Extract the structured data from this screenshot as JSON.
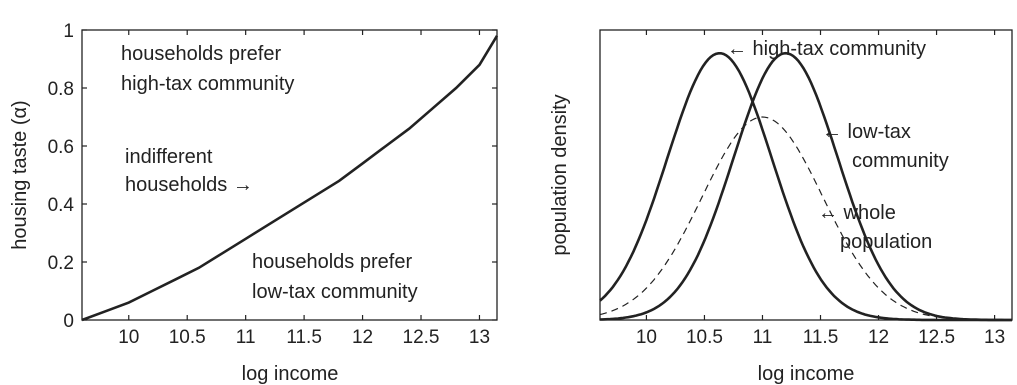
{
  "chart_data": [
    {
      "type": "line",
      "title": "",
      "xlabel": "log income",
      "ylabel": "housing taste (α)",
      "xlim": [
        9.6,
        13.15
      ],
      "ylim": [
        0,
        1
      ],
      "xticks": [
        "10",
        "10.5",
        "11",
        "11.5",
        "12",
        "12.5",
        "13"
      ],
      "yticks": [
        "0",
        "0.2",
        "0.4",
        "0.6",
        "0.8",
        "1"
      ],
      "series": [
        {
          "color": "#222222",
          "style": "solid",
          "x": [
            9.6,
            9.8,
            10.0,
            10.2,
            10.4,
            10.6,
            10.8,
            11.0,
            11.2,
            11.4,
            11.6,
            11.8,
            12.0,
            12.2,
            12.4,
            12.6,
            12.8,
            13.0,
            13.15
          ],
          "y": [
            0.0,
            0.03,
            0.06,
            0.1,
            0.14,
            0.18,
            0.23,
            0.28,
            0.33,
            0.38,
            0.43,
            0.48,
            0.54,
            0.6,
            0.66,
            0.73,
            0.8,
            0.88,
            0.98
          ]
        }
      ],
      "annotations": [
        {
          "lines": [
            "households prefer",
            "high-tax community"
          ]
        },
        {
          "lines": [
            "indifferent",
            "households →"
          ]
        },
        {
          "lines": [
            "households prefer",
            "low-tax community"
          ]
        }
      ]
    },
    {
      "type": "line",
      "title": "",
      "xlabel": "log income",
      "ylabel": "population density",
      "xlim": [
        9.6,
        13.15
      ],
      "xticks": [
        "10",
        "10.5",
        "11",
        "11.5",
        "12",
        "12.5",
        "13"
      ],
      "yticks": [],
      "grid": false,
      "series": [
        {
          "label_lines": [
            "← high-tax community"
          ],
          "color": "#222222",
          "style": "solid",
          "mean": 10.63,
          "sd": 0.45,
          "peak": 0.92
        },
        {
          "label_lines": [
            "← low-tax",
            "community"
          ],
          "color": "#222222",
          "style": "solid",
          "mean": 11.2,
          "sd": 0.45,
          "peak": 0.92
        },
        {
          "label_lines": [
            "← whole",
            "population"
          ],
          "color": "#222222",
          "style": "dashed",
          "mean": 11.0,
          "sd": 0.52,
          "peak": 0.7
        }
      ]
    }
  ]
}
